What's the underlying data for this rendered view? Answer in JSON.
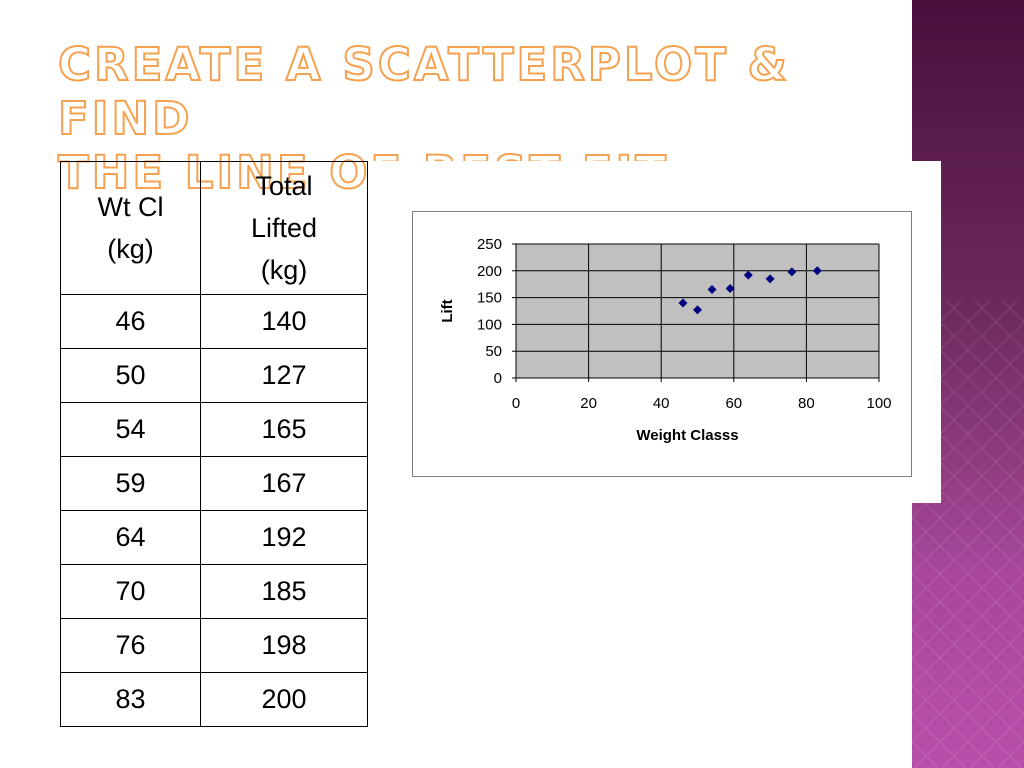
{
  "slide": {
    "title_line1": "Create a Scatterplot & Find",
    "title_line2": "the Line of Best Fit."
  },
  "table": {
    "headers": [
      [
        "Wt Cl",
        "(kg)"
      ],
      [
        "Total",
        "Lifted",
        "(kg)"
      ]
    ],
    "rows": [
      [
        "46",
        "140"
      ],
      [
        "50",
        "127"
      ],
      [
        "54",
        "165"
      ],
      [
        "59",
        "167"
      ],
      [
        "64",
        "192"
      ],
      [
        "70",
        "185"
      ],
      [
        "76",
        "198"
      ],
      [
        "83",
        "200"
      ]
    ]
  },
  "chart_data": {
    "type": "scatter",
    "title": "",
    "xlabel": "Weight Classs",
    "ylabel": "Lift",
    "xlim": [
      0,
      100
    ],
    "ylim": [
      0,
      250
    ],
    "xticks": [
      0,
      20,
      40,
      60,
      80,
      100
    ],
    "yticks": [
      0,
      50,
      100,
      150,
      200,
      250
    ],
    "grid": true,
    "plot_background": "#c0c0c0",
    "marker_color": "#000080",
    "marker": "diamond",
    "x": [
      46,
      50,
      54,
      59,
      64,
      70,
      76,
      83
    ],
    "y": [
      140,
      127,
      165,
      167,
      192,
      185,
      198,
      200
    ]
  },
  "colors": {
    "title_outline": "#f5a14f",
    "side_band_top": "#4a0f3c",
    "side_band_bottom": "#b84fab"
  }
}
